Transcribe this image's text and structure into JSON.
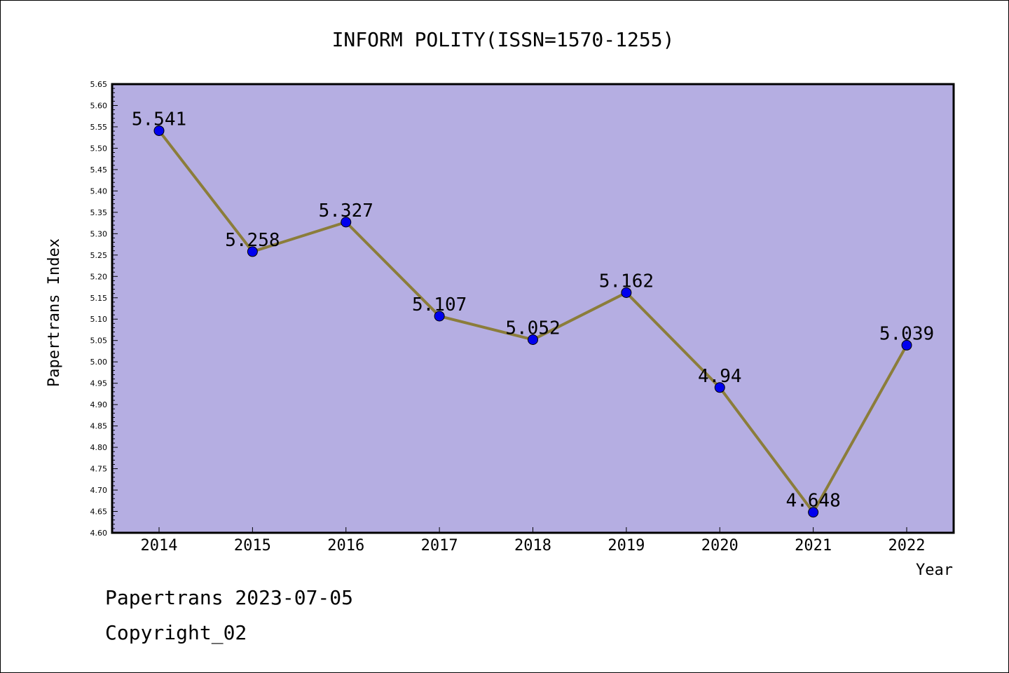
{
  "chart_data": {
    "type": "line",
    "title": "INFORM POLITY(ISSN=1570-1255)",
    "xlabel": "Year",
    "ylabel": "Papertrans Index",
    "categories": [
      "2014",
      "2015",
      "2016",
      "2017",
      "2018",
      "2019",
      "2020",
      "2021",
      "2022"
    ],
    "series": [
      {
        "values": [
          5.541,
          5.258,
          5.327,
          5.107,
          5.052,
          5.162,
          4.94,
          4.648,
          5.039
        ],
        "labels": [
          "5.541",
          "5.258",
          "5.327",
          "5.107",
          "5.052",
          "5.162",
          "4.94",
          "4.648",
          "5.039"
        ]
      }
    ],
    "ylim": [
      4.6,
      5.65
    ],
    "ytick_step": 0.05,
    "grid": false,
    "legend": "none",
    "colors": {
      "plot_background": "#b5aee2",
      "line": "#8b7d3a",
      "marker": "#0000ee"
    }
  },
  "footer": {
    "date_line": "Papertrans 2023-07-05",
    "copyright": "Copyright_02"
  }
}
